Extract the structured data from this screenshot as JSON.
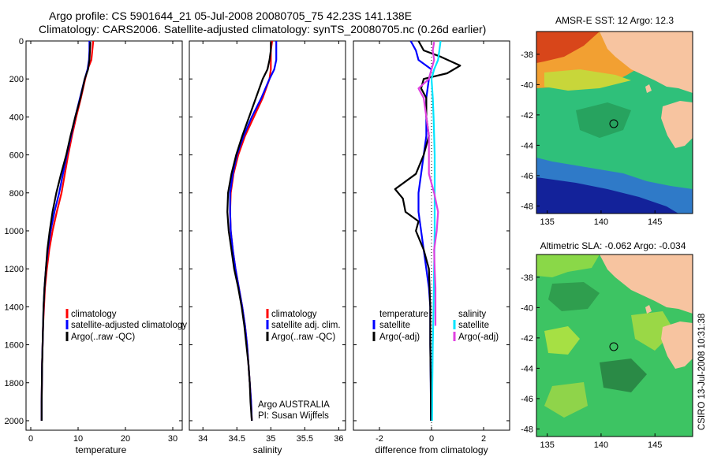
{
  "header": {
    "title_line1": "Argo profile: CS 5901644_21 05-Jul-2008 20080705_75 42.23S 141.138E",
    "title_line2": "Climatology: CARS2006. Satellite-adjusted climatology: synTS_20080705.nc (0.26d earlier)"
  },
  "side_label": "CSIRO 13-Jul-2008 10:31:38",
  "colors": {
    "climatology": "#ff0000",
    "satellite": "#0000ff",
    "argo": "#000000",
    "sal_satellite": "#00e5ff",
    "sal_argo": "#e040e0"
  },
  "chart_data": [
    {
      "type": "line",
      "xlabel": "temperature",
      "ylabel": "",
      "xlim": [
        -1,
        32
      ],
      "ylim": [
        2050,
        0
      ],
      "x_ticks": [
        0,
        10,
        20,
        30
      ],
      "y_ticks": [
        0,
        200,
        400,
        600,
        800,
        1000,
        1200,
        1400,
        1600,
        1800,
        2000
      ],
      "legend": [
        "climatology",
        "satellite-adjusted climatology",
        "Argo(..raw -QC)"
      ],
      "series": [
        {
          "name": "climatology",
          "color": "red",
          "depth": [
            0,
            50,
            100,
            150,
            200,
            300,
            400,
            500,
            600,
            700,
            800,
            900,
            1000,
            1100,
            1200,
            1300,
            1400,
            1500,
            1600,
            1700,
            1800,
            1900,
            2000
          ],
          "values": [
            13.2,
            13.0,
            12.8,
            12.0,
            11.5,
            10.6,
            9.6,
            8.7,
            7.9,
            7.2,
            6.5,
            5.5,
            4.6,
            3.9,
            3.4,
            3.0,
            2.8,
            2.6,
            2.5,
            2.4,
            2.35,
            2.3,
            2.3
          ]
        },
        {
          "name": "satellite-adjusted climatology",
          "color": "blue",
          "depth": [
            0,
            50,
            100,
            150,
            200,
            300,
            400,
            500,
            600,
            700,
            800,
            900,
            1000,
            1100,
            1200,
            1300,
            1400,
            1500,
            1600,
            1700,
            1800,
            1900,
            2000
          ],
          "values": [
            12.4,
            12.4,
            12.3,
            12.0,
            11.4,
            10.4,
            9.4,
            8.5,
            7.6,
            6.8,
            6.0,
            5.0,
            4.2,
            3.6,
            3.2,
            2.9,
            2.7,
            2.6,
            2.5,
            2.4,
            2.35,
            2.3,
            2.3
          ]
        },
        {
          "name": "Argo(..raw -QC)",
          "color": "black",
          "depth": [
            5,
            50,
            100,
            150,
            200,
            300,
            400,
            500,
            600,
            700,
            800,
            900,
            1000,
            1100,
            1200,
            1300,
            1400,
            1500,
            1600,
            1700,
            1800,
            1900,
            2000
          ],
          "values": [
            12.6,
            12.5,
            12.4,
            12.1,
            11.4,
            10.5,
            9.4,
            8.4,
            7.5,
            6.4,
            5.4,
            4.6,
            4.0,
            3.5,
            3.2,
            2.9,
            2.7,
            2.6,
            2.5,
            2.4,
            2.35,
            2.3,
            2.3
          ]
        }
      ]
    },
    {
      "type": "line",
      "xlabel": "salinity",
      "ylabel": "",
      "xlim": [
        33.8,
        36.1
      ],
      "ylim": [
        2050,
        0
      ],
      "x_ticks": [
        34,
        34.5,
        35,
        35.5,
        36
      ],
      "y_ticks": [
        0,
        200,
        400,
        600,
        800,
        1000,
        1200,
        1400,
        1600,
        1800,
        2000
      ],
      "legend": [
        "climatology",
        "satellite adj. clim.",
        "Argo(..raw -QC)"
      ],
      "annotation_line1": "Argo AUSTRALIA",
      "annotation_line2": "PI: Susan Wijffels",
      "series": [
        {
          "name": "climatology",
          "color": "red",
          "depth": [
            0,
            50,
            100,
            150,
            200,
            300,
            400,
            500,
            600,
            700,
            800,
            900,
            1000,
            1100,
            1200,
            1300,
            1400,
            1500,
            1600,
            1700,
            1800,
            1900,
            2000
          ],
          "values": [
            35.02,
            35.0,
            35.0,
            35.0,
            34.98,
            34.88,
            34.75,
            34.62,
            34.52,
            34.45,
            34.41,
            34.4,
            34.41,
            34.44,
            34.48,
            34.53,
            34.58,
            34.62,
            34.65,
            34.67,
            34.69,
            34.71,
            34.72
          ]
        },
        {
          "name": "satellite adj. clim.",
          "color": "blue",
          "depth": [
            0,
            50,
            100,
            150,
            200,
            300,
            400,
            500,
            600,
            700,
            800,
            900,
            1000,
            1100,
            1200,
            1300,
            1400,
            1500,
            1600,
            1700,
            1800,
            1900,
            2000
          ],
          "values": [
            35.08,
            35.08,
            35.08,
            35.05,
            34.98,
            34.86,
            34.72,
            34.6,
            34.5,
            34.44,
            34.4,
            34.4,
            34.41,
            34.44,
            34.48,
            34.53,
            34.58,
            34.62,
            34.65,
            34.67,
            34.69,
            34.71,
            34.72
          ]
        },
        {
          "name": "Argo(..raw -QC)",
          "color": "black",
          "depth": [
            5,
            50,
            100,
            150,
            200,
            300,
            400,
            500,
            600,
            700,
            800,
            900,
            1000,
            1100,
            1200,
            1300,
            1400,
            1500,
            1600,
            1700,
            1800,
            1900,
            2000
          ],
          "values": [
            35.0,
            35.0,
            34.98,
            34.95,
            34.88,
            34.78,
            34.68,
            34.58,
            34.49,
            34.42,
            34.37,
            34.36,
            34.38,
            34.42,
            34.46,
            34.52,
            34.57,
            34.61,
            34.64,
            34.67,
            34.69,
            34.7,
            34.72
          ]
        }
      ]
    },
    {
      "type": "line",
      "xlabel": "difference from climatology",
      "ylabel": "",
      "xlim": [
        -3,
        3
      ],
      "ylim": [
        2050,
        0
      ],
      "x_ticks": [
        -2,
        0,
        2
      ],
      "y_ticks": [
        0,
        200,
        400,
        600,
        800,
        1000,
        1200,
        1400,
        1600,
        1800,
        2000
      ],
      "legend_temperature_heading": "temperature",
      "legend_salinity_heading": "salinity",
      "legend": [
        "satellite",
        "Argo(-adj)",
        "satellite",
        "Argo(-adj)"
      ],
      "series": [
        {
          "name": "satellite",
          "group": "temperature",
          "color": "blue",
          "depth": [
            0,
            50,
            100,
            150,
            200,
            300,
            400,
            500,
            600,
            700,
            800,
            900,
            1000,
            1100,
            1200,
            1300,
            1400,
            1600,
            1800,
            2000
          ],
          "values": [
            -0.8,
            -0.6,
            -0.5,
            0.0,
            -0.1,
            -0.2,
            -0.2,
            -0.2,
            -0.3,
            -0.4,
            -0.5,
            -0.5,
            -0.4,
            -0.3,
            -0.2,
            -0.1,
            -0.05,
            -0.05,
            -0.03,
            -0.02
          ]
        },
        {
          "name": "Argo(-adj)",
          "group": "temperature",
          "color": "black",
          "depth": [
            0,
            50,
            80,
            130,
            170,
            200,
            250,
            300,
            400,
            500,
            600,
            700,
            780,
            830,
            900,
            950,
            1000,
            1100,
            1200,
            1400,
            1600,
            1800,
            2000
          ],
          "values": [
            -0.5,
            -0.3,
            0.3,
            1.1,
            0.6,
            -0.3,
            -0.4,
            -0.2,
            -0.2,
            -0.1,
            -0.3,
            -0.6,
            -1.4,
            -1.1,
            -1.0,
            -0.5,
            -0.6,
            -0.3,
            -0.1,
            -0.05,
            -0.05,
            -0.03,
            -0.02
          ]
        },
        {
          "name": "satellite",
          "group": "salinity",
          "color": "cyan",
          "depth": [
            0,
            50,
            100,
            150,
            200,
            300,
            400,
            500,
            600,
            700,
            800,
            900,
            1000,
            1200,
            1400,
            1600,
            1800,
            2000
          ],
          "values": [
            0.35,
            0.3,
            0.25,
            0.1,
            0.0,
            0.05,
            0.08,
            0.1,
            0.12,
            0.12,
            0.12,
            0.12,
            0.12,
            0.1,
            0.08,
            0.05,
            0.03,
            0.02
          ]
        },
        {
          "name": "Argo(-adj)",
          "group": "salinity",
          "color": "magenta",
          "depth": [
            5,
            50,
            100,
            150,
            200,
            250,
            300,
            400,
            500,
            600,
            700,
            800,
            900,
            1000,
            1100,
            1200,
            1300,
            1400,
            1500
          ],
          "values": [
            0.1,
            0.05,
            0.1,
            0.0,
            -0.1,
            -0.5,
            -0.3,
            -0.2,
            -0.1,
            -0.1,
            -0.1,
            0.1,
            0.25,
            0.2,
            0.1,
            0.12,
            0.15,
            0.15,
            0.15
          ]
        }
      ]
    },
    {
      "type": "heatmap",
      "title": "AMSR-E SST: 12 Argo: 12.3",
      "xlim": [
        134,
        148.5
      ],
      "ylim": [
        -48.5,
        -36.5
      ],
      "x_ticks": [
        135,
        140,
        145
      ],
      "y_ticks": [
        -38,
        -40,
        -42,
        -44,
        -46,
        -48
      ],
      "float_position": {
        "lon": 141.138,
        "lat": -42.23
      }
    },
    {
      "type": "heatmap",
      "title": "Altimetric SLA: -0.062 Argo: -0.034",
      "xlim": [
        134,
        148.5
      ],
      "ylim": [
        -48.5,
        -36.5
      ],
      "x_ticks": [
        135,
        140,
        145
      ],
      "y_ticks": [
        -38,
        -40,
        -42,
        -44,
        -46,
        -48
      ],
      "float_position": {
        "lon": 141.138,
        "lat": -42.23
      }
    }
  ]
}
